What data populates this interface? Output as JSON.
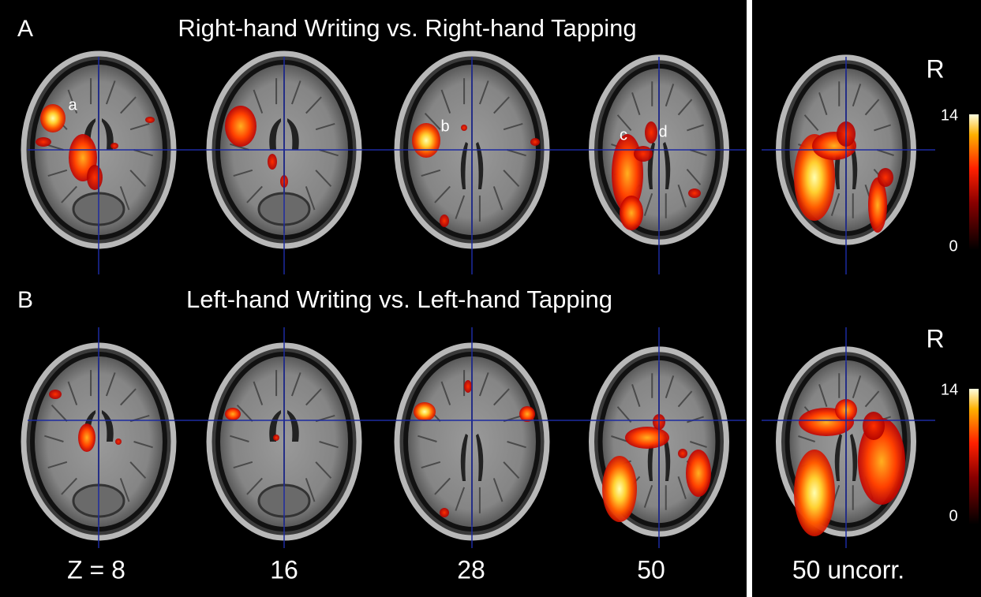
{
  "panels": [
    {
      "letter": "A",
      "title": "Right-hand Writing vs. Right-hand Tapping",
      "labels": [
        "a",
        "b",
        "c",
        "d"
      ]
    },
    {
      "letter": "B",
      "title": "Left-hand Writing vs. Left-hand Tapping"
    }
  ],
  "side_panels": [
    {
      "orientation": "R",
      "scale_max": "14",
      "scale_min": "0"
    },
    {
      "orientation": "R",
      "scale_max": "14",
      "scale_min": "0"
    }
  ],
  "slice_labels": [
    "Z = 8",
    "16",
    "28",
    "50"
  ],
  "side_label": "50 uncorr."
}
